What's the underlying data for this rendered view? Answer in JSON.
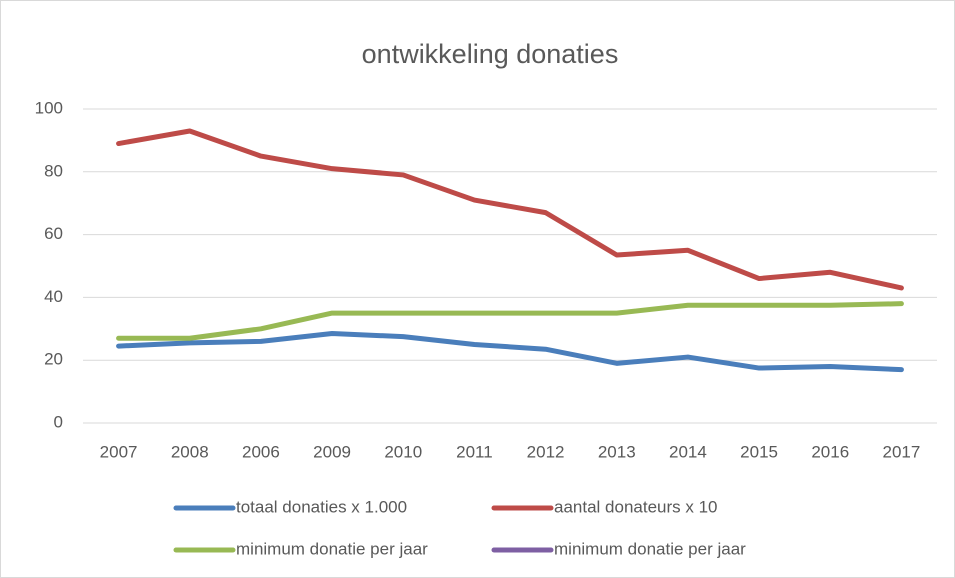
{
  "chart_data": {
    "type": "line",
    "title": "ontwikkeling donaties",
    "categories": [
      "2007",
      "2008",
      "2006",
      "2009",
      "2010",
      "2011",
      "2012",
      "2013",
      "2014",
      "2015",
      "2016",
      "2017"
    ],
    "series": [
      {
        "name": "totaal donaties x 1.000",
        "color": "#4a7ebb",
        "values": [
          24.5,
          25.5,
          26,
          28.5,
          27.5,
          25,
          23.5,
          19,
          21,
          17.5,
          18,
          17
        ]
      },
      {
        "name": "aantal donateurs x 10",
        "color": "#be4b48",
        "values": [
          89,
          93,
          85,
          81,
          79,
          71,
          67,
          53.5,
          55,
          46,
          48,
          43
        ]
      },
      {
        "name": "minimum donatie per jaar",
        "color": "#98b954",
        "values": [
          27,
          27,
          30,
          35,
          35,
          35,
          35,
          35,
          37.5,
          37.5,
          37.5,
          38
        ]
      },
      {
        "name": "minimum donatie per jaar",
        "color": "#7e5fa3",
        "values": [
          null,
          null,
          null,
          null,
          null,
          null,
          null,
          null,
          null,
          null,
          null,
          null
        ]
      }
    ],
    "ylim": [
      0,
      100
    ],
    "yticks": [
      0,
      20,
      40,
      60,
      80,
      100
    ],
    "grid": true
  }
}
